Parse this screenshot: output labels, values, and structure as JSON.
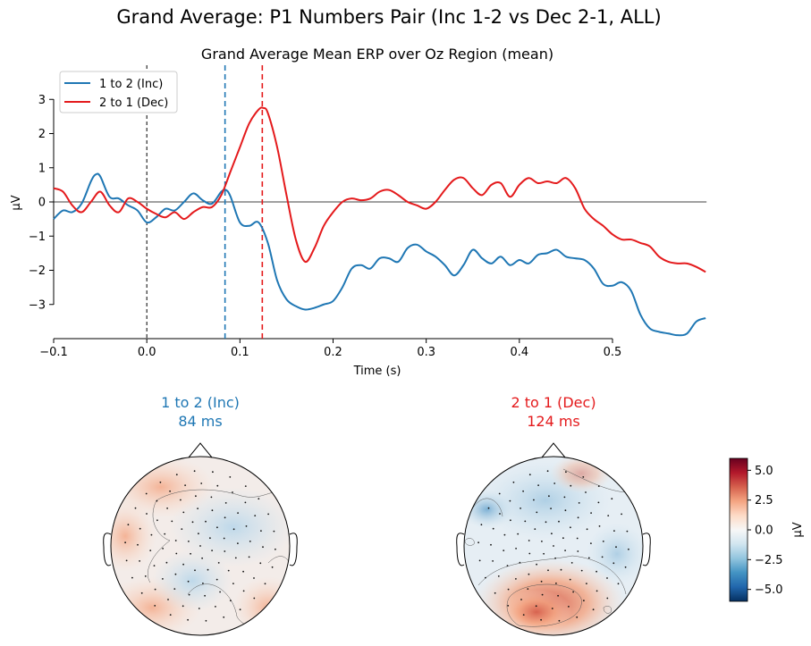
{
  "figure": {
    "title": "Grand Average: P1 Numbers Pair (Inc 1-2 vs Dec 2-1, ALL)"
  },
  "chart_data": [
    {
      "type": "line",
      "title": "Grand Average Mean ERP over Oz Region (mean)",
      "xlabel": "Time (s)",
      "ylabel": "µV",
      "xlim": [
        -0.1,
        0.6
      ],
      "ylim": [
        -4.0,
        4.0
      ],
      "xticks": [
        -0.1,
        0.0,
        0.1,
        0.2,
        0.3,
        0.4,
        0.5
      ],
      "xtick_labels": [
        "−0.1",
        "0.0",
        "0.1",
        "0.2",
        "0.3",
        "0.4",
        "0.5"
      ],
      "yticks": [
        3,
        2,
        1,
        0,
        -1,
        -2,
        -3
      ],
      "ytick_labels": [
        "3",
        "2",
        "1",
        "0",
        "−1",
        "−2",
        "−3"
      ],
      "legend_position": "top-left",
      "grid": false,
      "markers": [
        {
          "x": 0.0,
          "color": "#000000"
        },
        {
          "x": 0.084,
          "color": "#1f77b4"
        },
        {
          "x": 0.124,
          "color": "#e41a1c"
        }
      ],
      "series": [
        {
          "name": "1 to 2 (Inc)",
          "color": "#1f77b4",
          "x": [
            -0.1,
            -0.09,
            -0.08,
            -0.07,
            -0.06,
            -0.055,
            -0.05,
            -0.04,
            -0.03,
            -0.02,
            -0.01,
            0.0,
            0.01,
            0.02,
            0.03,
            0.04,
            0.05,
            0.06,
            0.07,
            0.08,
            0.085,
            0.09,
            0.1,
            0.11,
            0.12,
            0.13,
            0.14,
            0.15,
            0.16,
            0.17,
            0.18,
            0.19,
            0.2,
            0.21,
            0.22,
            0.23,
            0.24,
            0.25,
            0.26,
            0.27,
            0.28,
            0.29,
            0.3,
            0.31,
            0.32,
            0.33,
            0.34,
            0.35,
            0.36,
            0.37,
            0.38,
            0.39,
            0.4,
            0.41,
            0.42,
            0.43,
            0.44,
            0.45,
            0.46,
            0.47,
            0.48,
            0.49,
            0.5,
            0.51,
            0.52,
            0.53,
            0.54,
            0.55,
            0.56,
            0.57,
            0.58,
            0.59,
            0.6
          ],
          "values": [
            -0.5,
            -0.25,
            -0.3,
            -0.05,
            0.6,
            0.8,
            0.75,
            0.15,
            0.1,
            -0.1,
            -0.25,
            -0.6,
            -0.45,
            -0.2,
            -0.25,
            0.0,
            0.25,
            0.05,
            -0.05,
            0.3,
            0.35,
            0.15,
            -0.6,
            -0.7,
            -0.6,
            -1.2,
            -2.3,
            -2.85,
            -3.05,
            -3.15,
            -3.1,
            -3.0,
            -2.9,
            -2.5,
            -1.95,
            -1.85,
            -1.95,
            -1.65,
            -1.65,
            -1.75,
            -1.35,
            -1.25,
            -1.45,
            -1.6,
            -1.85,
            -2.15,
            -1.85,
            -1.4,
            -1.65,
            -1.8,
            -1.6,
            -1.85,
            -1.7,
            -1.8,
            -1.55,
            -1.5,
            -1.4,
            -1.6,
            -1.65,
            -1.7,
            -1.95,
            -2.4,
            -2.45,
            -2.35,
            -2.6,
            -3.3,
            -3.7,
            -3.8,
            -3.85,
            -3.9,
            -3.85,
            -3.5,
            -3.4
          ]
        },
        {
          "name": "2 to 1 (Dec)",
          "color": "#e41a1c",
          "x": [
            -0.1,
            -0.09,
            -0.08,
            -0.07,
            -0.06,
            -0.05,
            -0.04,
            -0.03,
            -0.02,
            -0.01,
            0.0,
            0.01,
            0.02,
            0.03,
            0.04,
            0.05,
            0.06,
            0.07,
            0.08,
            0.09,
            0.1,
            0.11,
            0.12,
            0.125,
            0.13,
            0.14,
            0.15,
            0.16,
            0.17,
            0.18,
            0.19,
            0.2,
            0.21,
            0.22,
            0.23,
            0.24,
            0.25,
            0.26,
            0.27,
            0.28,
            0.29,
            0.3,
            0.31,
            0.32,
            0.33,
            0.34,
            0.35,
            0.36,
            0.37,
            0.38,
            0.39,
            0.4,
            0.41,
            0.42,
            0.43,
            0.44,
            0.45,
            0.46,
            0.47,
            0.48,
            0.49,
            0.5,
            0.51,
            0.52,
            0.53,
            0.54,
            0.55,
            0.56,
            0.57,
            0.58,
            0.59,
            0.6
          ],
          "values": [
            0.4,
            0.3,
            -0.1,
            -0.3,
            0.0,
            0.3,
            -0.1,
            -0.3,
            0.1,
            0.0,
            -0.2,
            -0.35,
            -0.45,
            -0.3,
            -0.5,
            -0.3,
            -0.15,
            -0.15,
            0.2,
            0.9,
            1.6,
            2.3,
            2.7,
            2.75,
            2.6,
            1.6,
            0.2,
            -1.1,
            -1.75,
            -1.35,
            -0.7,
            -0.3,
            0.0,
            0.1,
            0.05,
            0.1,
            0.3,
            0.35,
            0.2,
            0.0,
            -0.1,
            -0.2,
            0.0,
            0.35,
            0.65,
            0.7,
            0.4,
            0.2,
            0.5,
            0.55,
            0.15,
            0.5,
            0.7,
            0.55,
            0.6,
            0.55,
            0.7,
            0.4,
            -0.2,
            -0.5,
            -0.7,
            -0.95,
            -1.1,
            -1.1,
            -1.2,
            -1.3,
            -1.6,
            -1.75,
            -1.8,
            -1.8,
            -1.9,
            -2.05
          ]
        }
      ]
    },
    {
      "type": "heatmap",
      "panels": [
        {
          "label": "1 to 2 (Inc)",
          "latency": "84 ms",
          "color": "#1f77b4"
        },
        {
          "label": "2 to 1 (Dec)",
          "latency": "124 ms",
          "color": "#e41a1c"
        }
      ],
      "colorbar": {
        "label": "µV",
        "vmin": -6.0,
        "vmax": 6.0,
        "ticks": [
          5.0,
          2.5,
          0.0,
          -2.5,
          -5.0
        ],
        "tick_labels": [
          "5.0",
          "2.5",
          "0.0",
          "−2.5",
          "−5.0"
        ],
        "colors": [
          "#67001f",
          "#b2182b",
          "#d6604d",
          "#f4a582",
          "#fddbc7",
          "#f7f7f7",
          "#d1e5f0",
          "#92c5de",
          "#4393c3",
          "#2166ac",
          "#053061"
        ]
      }
    }
  ]
}
